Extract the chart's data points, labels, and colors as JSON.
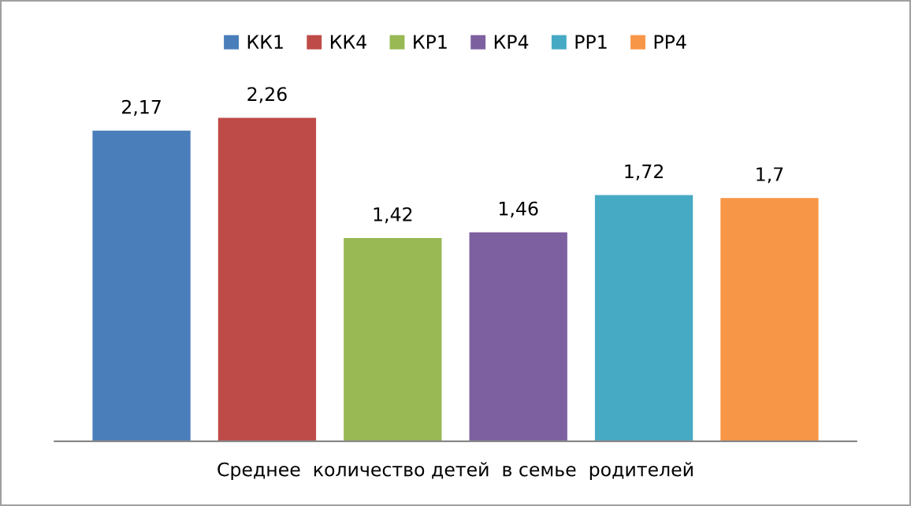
{
  "chart_data": {
    "type": "bar",
    "categories": [
      null
    ],
    "xlabel": "Среднее  количество детей  в семье  родителей",
    "series": [
      {
        "name": "КК1",
        "color": "#4a7ebb",
        "values": [
          2.17
        ],
        "value_labels": [
          "2,17"
        ]
      },
      {
        "name": "КК4",
        "color": "#be4b48",
        "values": [
          2.26
        ],
        "value_labels": [
          "2,26"
        ]
      },
      {
        "name": "КР1",
        "color": "#98b954",
        "values": [
          1.42
        ],
        "value_labels": [
          "1,42"
        ]
      },
      {
        "name": "КР4",
        "color": "#7d60a0",
        "values": [
          1.46
        ],
        "value_labels": [
          "1,46"
        ]
      },
      {
        "name": "РР1",
        "color": "#46aac5",
        "values": [
          1.72
        ],
        "value_labels": [
          "1,72"
        ]
      },
      {
        "name": "РР4",
        "color": "#f79646",
        "values": [
          1.7
        ],
        "value_labels": [
          "1,7"
        ]
      }
    ],
    "legend": "top",
    "grid": false
  }
}
